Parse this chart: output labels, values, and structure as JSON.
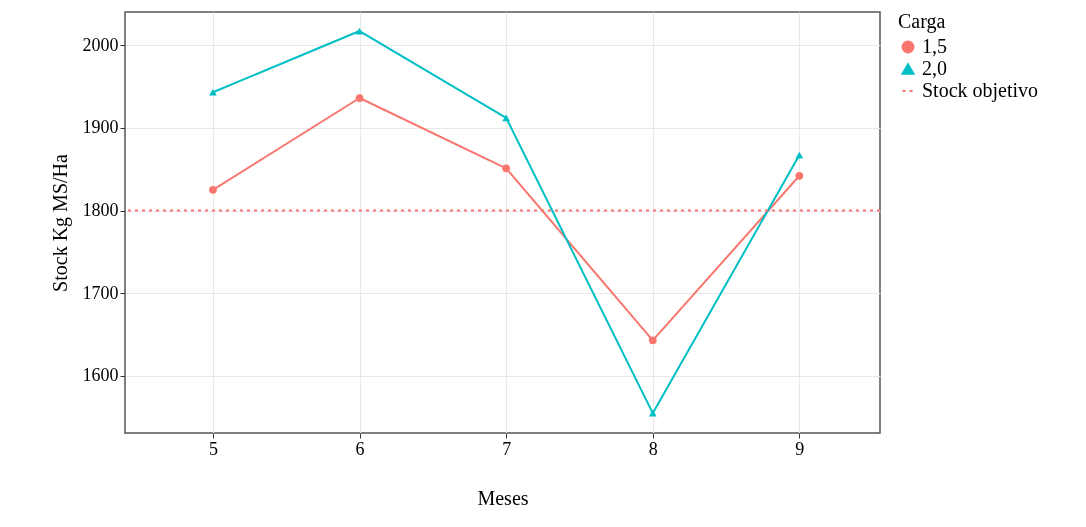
{
  "chart_data": {
    "type": "line",
    "xlabel": "Meses",
    "ylabel": "Stock Kg MS/Ha",
    "legend_title": "Carga",
    "x": [
      5,
      6,
      7,
      8,
      9
    ],
    "series": [
      {
        "name": "1,5",
        "color": "#f8766d",
        "marker": "circle",
        "values": [
          1825,
          1936,
          1851,
          1643,
          1842
        ]
      },
      {
        "name": "2,0",
        "color": "#00bfc4",
        "marker": "triangle",
        "values": [
          1943,
          2017,
          1912,
          1555,
          1867
        ]
      }
    ],
    "xlim": [
      4.4,
      9.55
    ],
    "xticks": [
      5,
      6,
      7,
      8,
      9
    ],
    "ylim": [
      1531,
      2040
    ],
    "yticks": [
      1600,
      1700,
      1800,
      1900,
      2000
    ],
    "ref_lines": [
      {
        "axis": "y",
        "value": 1800,
        "label": "Stock objetivo",
        "color": "#f8766d",
        "line_style": "dotted"
      }
    ],
    "grid": true,
    "legend": "right",
    "line_style": "solid"
  }
}
